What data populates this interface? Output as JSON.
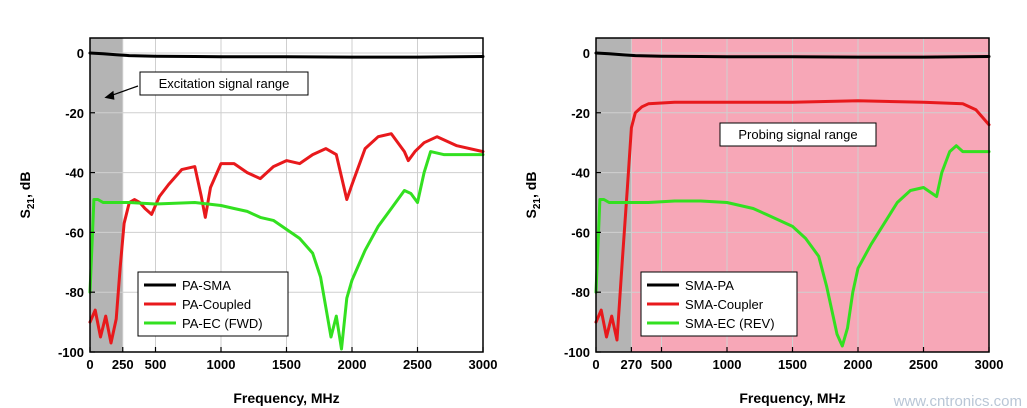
{
  "chart_data": [
    {
      "type": "line",
      "xlabel": "Frequency, MHz",
      "ylabel_main": "S",
      "ylabel_sub": "21",
      "ylabel_suffix": ", dB",
      "xlim": [
        0,
        3000
      ],
      "ylim": [
        -100,
        5
      ],
      "x_ticks": [
        0,
        250,
        500,
        1000,
        1500,
        2000,
        2500,
        3000
      ],
      "x_tick_labels": [
        "0",
        "250",
        "500",
        "1000",
        "1500",
        "2000",
        "2500",
        "3000"
      ],
      "y_ticks": [
        0,
        -20,
        -40,
        -60,
        -80,
        -100
      ],
      "y_tick_labels": [
        "0",
        "-20",
        "-40",
        "-60",
        "-80",
        "-100"
      ],
      "grid": true,
      "shaded_regions": [
        {
          "x_from": 0,
          "x_to": 250,
          "color": "#b4b4b4"
        }
      ],
      "annotation": {
        "text": "Excitation signal range",
        "x": 1050,
        "y": -11,
        "arrow_to_x": 110,
        "arrow_to_y": -15
      },
      "legend": {
        "position": "bottom-left"
      },
      "series": [
        {
          "name": "PA-SMA",
          "color": "#000000",
          "x": [
            0,
            100,
            200,
            300,
            500,
            800,
            1000,
            1500,
            2000,
            2500,
            2800,
            3000
          ],
          "y": [
            0,
            -0.3,
            -0.6,
            -0.9,
            -1.1,
            -1.2,
            -1.3,
            -1.3,
            -1.4,
            -1.4,
            -1.3,
            -1.2
          ]
        },
        {
          "name": "PA-Coupled",
          "color": "#e8191c",
          "x": [
            0,
            40,
            80,
            120,
            160,
            200,
            230,
            260,
            300,
            340,
            380,
            420,
            470,
            530,
            600,
            700,
            800,
            850,
            880,
            920,
            1000,
            1100,
            1200,
            1300,
            1400,
            1500,
            1600,
            1700,
            1800,
            1880,
            1960,
            2000,
            2100,
            2200,
            2300,
            2400,
            2430,
            2480,
            2550,
            2650,
            2800,
            3000
          ],
          "y": [
            -90,
            -86,
            -95,
            -88,
            -97,
            -89,
            -72,
            -57,
            -50,
            -49,
            -50,
            -52,
            -54,
            -48,
            -44,
            -39,
            -38,
            -48,
            -55,
            -45,
            -37,
            -37,
            -40,
            -42,
            -38,
            -36,
            -37,
            -34,
            -32,
            -34,
            -49,
            -44,
            -32,
            -28,
            -27,
            -33,
            -36,
            -33,
            -30,
            -28,
            -31,
            -33
          ]
        },
        {
          "name": "PA-EC (FWD)",
          "color": "#33e020",
          "x": [
            0,
            30,
            60,
            100,
            200,
            300,
            500,
            800,
            1000,
            1100,
            1200,
            1300,
            1400,
            1500,
            1600,
            1700,
            1760,
            1800,
            1840,
            1880,
            1920,
            1960,
            2000,
            2100,
            2200,
            2300,
            2400,
            2450,
            2500,
            2550,
            2600,
            2700,
            2800,
            3000
          ],
          "y": [
            -80,
            -49,
            -49,
            -50,
            -50,
            -50,
            -50.5,
            -50,
            -51,
            -52,
            -53,
            -55,
            -56,
            -59,
            -62,
            -67,
            -75,
            -85,
            -95,
            -88,
            -99,
            -82,
            -76,
            -66,
            -58,
            -52,
            -46,
            -47,
            -50,
            -40,
            -33,
            -34,
            -34,
            -34
          ]
        }
      ]
    },
    {
      "type": "line",
      "xlabel": "Frequency, MHz",
      "ylabel_main": "S",
      "ylabel_sub": "21",
      "ylabel_suffix": ", dB",
      "xlim": [
        0,
        3000
      ],
      "ylim": [
        -100,
        5
      ],
      "x_ticks": [
        0,
        270,
        500,
        1000,
        1500,
        2000,
        2500,
        3000
      ],
      "x_tick_labels": [
        "0",
        "270",
        "500",
        "1000",
        "1500",
        "2000",
        "2500",
        "3000"
      ],
      "y_ticks": [
        0,
        -20,
        -40,
        -60,
        -80,
        -100
      ],
      "y_tick_labels": [
        "0",
        "-20",
        "-40",
        "-60",
        "-80",
        "-100"
      ],
      "grid": true,
      "shaded_regions": [
        {
          "x_from": 0,
          "x_to": 270,
          "color": "#b4b4b4"
        },
        {
          "x_from": 270,
          "x_to": 3000,
          "color": "#f7a7b7"
        }
      ],
      "annotation": {
        "text": "Probing signal range",
        "x": 1420,
        "y": -28
      },
      "legend": {
        "position": "bottom-left"
      },
      "series": [
        {
          "name": "SMA-PA",
          "color": "#000000",
          "x": [
            0,
            100,
            200,
            300,
            500,
            800,
            1000,
            1500,
            2000,
            2500,
            2800,
            3000
          ],
          "y": [
            0,
            -0.3,
            -0.6,
            -0.9,
            -1.1,
            -1.2,
            -1.3,
            -1.3,
            -1.4,
            -1.4,
            -1.3,
            -1.2
          ]
        },
        {
          "name": "SMA-Coupler",
          "color": "#e8191c",
          "x": [
            0,
            40,
            80,
            120,
            160,
            200,
            240,
            270,
            300,
            350,
            400,
            600,
            1000,
            1500,
            2000,
            2500,
            2800,
            2900,
            3000
          ],
          "y": [
            -90,
            -86,
            -95,
            -88,
            -96,
            -70,
            -45,
            -25,
            -20,
            -18,
            -17,
            -16.5,
            -16.5,
            -16.5,
            -16,
            -16.5,
            -17,
            -19,
            -24
          ]
        },
        {
          "name": "SMA-EC (REV)",
          "color": "#33e020",
          "x": [
            0,
            30,
            60,
            100,
            200,
            400,
            600,
            800,
            1000,
            1100,
            1200,
            1300,
            1400,
            1500,
            1600,
            1700,
            1760,
            1800,
            1840,
            1880,
            1920,
            1960,
            2000,
            2100,
            2200,
            2300,
            2400,
            2500,
            2600,
            2640,
            2700,
            2750,
            2800,
            3000
          ],
          "y": [
            -80,
            -49,
            -49,
            -50,
            -50,
            -50,
            -49.5,
            -49.5,
            -50,
            -51,
            -52,
            -54,
            -56,
            -58,
            -62,
            -68,
            -78,
            -86,
            -94,
            -98,
            -92,
            -80,
            -72,
            -64,
            -57,
            -50,
            -46,
            -45,
            -48,
            -40,
            -33,
            -31,
            -33,
            -33
          ]
        }
      ]
    }
  ],
  "watermark": "www.cntronics.com"
}
